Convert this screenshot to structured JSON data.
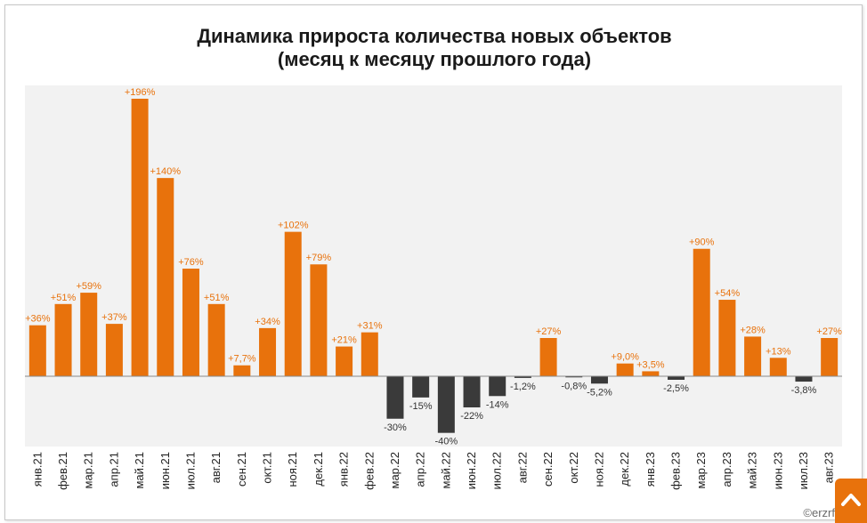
{
  "chart_data": {
    "type": "bar",
    "title": "Динамика прироста количества новых объектов",
    "subtitle": "(месяц к месяцу прошлого года)",
    "categories": [
      "янв.21",
      "фев.21",
      "мар.21",
      "апр.21",
      "май.21",
      "июн.21",
      "июл.21",
      "авг.21",
      "сен.21",
      "окт.21",
      "ноя.21",
      "дек.21",
      "янв.22",
      "фев.22",
      "мар.22",
      "апр.22",
      "май.22",
      "июн.22",
      "июл.22",
      "авг.22",
      "сен.22",
      "окт.22",
      "ноя.22",
      "дек.22",
      "янв.23",
      "фев.23",
      "мар.23",
      "апр.23",
      "май.23",
      "июн.23",
      "июл.23",
      "авг.23"
    ],
    "values": [
      36,
      51,
      59,
      37,
      196,
      140,
      76,
      51,
      7.7,
      34,
      102,
      79,
      21,
      31,
      -30,
      -15,
      -40,
      -22,
      -14,
      -1.2,
      27,
      -0.8,
      -5.2,
      9.0,
      3.5,
      -2.5,
      90,
      54,
      28,
      13,
      -3.8,
      27
    ],
    "labels": [
      "+36%",
      "+51%",
      "+59%",
      "+37%",
      "+196%",
      "+140%",
      "+76%",
      "+51%",
      "+7,7%",
      "+34%",
      "+102%",
      "+79%",
      "+21%",
      "+31%",
      "-30%",
      "-15%",
      "-40%",
      "-22%",
      "-14%",
      "-1,2%",
      "+27%",
      "-0,8%",
      "-5,2%",
      "+9,0%",
      "+3,5%",
      "-2,5%",
      "+90%",
      "+54%",
      "+28%",
      "+13%",
      "-3,8%",
      "+27%"
    ],
    "colors": {
      "positive": "#e8720c",
      "negative": "#3a3a3a",
      "plot_bg": "#f2f2f2",
      "baseline": "#8a8a8a"
    },
    "grid": false,
    "legend": "none"
  },
  "watermark": "©erzrf",
  "corner_icon": "chevron-up-icon"
}
